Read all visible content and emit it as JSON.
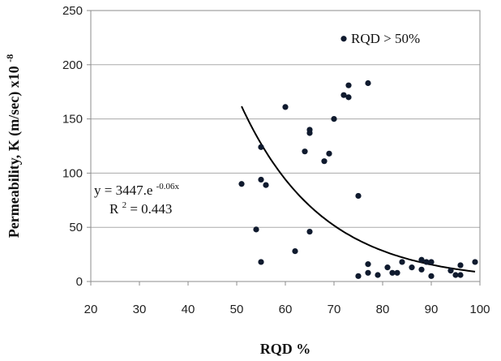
{
  "chart_data": {
    "type": "scatter",
    "title": "",
    "xlabel": "RQD %",
    "ylabel": "Permeability, K  (m/sec) x10",
    "ylabel_exponent": "-8",
    "xlim": [
      20,
      100
    ],
    "ylim": [
      0,
      250
    ],
    "xticks": [
      20,
      30,
      40,
      50,
      60,
      70,
      80,
      90,
      100
    ],
    "yticks": [
      0,
      50,
      100,
      150,
      200,
      250
    ],
    "grid": "horizontal",
    "legend": "none",
    "colors": {
      "points": "#0f1a2e",
      "trend": "#000000",
      "grid": "#aaaaaa",
      "frame": "#8c8c8c"
    },
    "series": [
      {
        "points": [
          [
            51,
            90
          ],
          [
            54,
            48
          ],
          [
            55,
            124
          ],
          [
            55,
            94
          ],
          [
            56,
            89
          ],
          [
            55,
            18
          ],
          [
            60,
            161
          ],
          [
            62,
            28
          ],
          [
            64,
            120
          ],
          [
            65,
            140
          ],
          [
            65,
            137
          ],
          [
            65,
            46
          ],
          [
            68,
            111
          ],
          [
            69,
            118
          ],
          [
            70,
            150
          ],
          [
            72,
            172
          ],
          [
            73,
            181
          ],
          [
            73,
            170
          ],
          [
            72,
            224
          ],
          [
            75,
            79
          ],
          [
            75,
            5
          ],
          [
            77,
            183
          ],
          [
            77,
            16
          ],
          [
            77,
            8
          ],
          [
            79,
            6
          ],
          [
            81,
            13
          ],
          [
            82,
            8
          ],
          [
            83,
            8
          ],
          [
            84,
            18
          ],
          [
            86,
            13
          ],
          [
            88,
            20
          ],
          [
            88,
            11
          ],
          [
            89,
            18
          ],
          [
            90,
            18
          ],
          [
            90,
            5
          ],
          [
            94,
            10
          ],
          [
            95,
            6
          ],
          [
            96,
            15
          ],
          [
            96,
            6
          ],
          [
            99,
            18
          ]
        ]
      }
    ],
    "trendline": {
      "type": "exponential",
      "a": 3447,
      "b": -0.06,
      "x_range": [
        51,
        99
      ]
    },
    "annotations": {
      "rqd_label": "RQD > 50%",
      "equation_base": "y = 3447.e",
      "equation_exponent": "-0.06x",
      "r2_prefix": "R",
      "r2_sup": "2",
      "r2_value": " = 0.443"
    }
  }
}
